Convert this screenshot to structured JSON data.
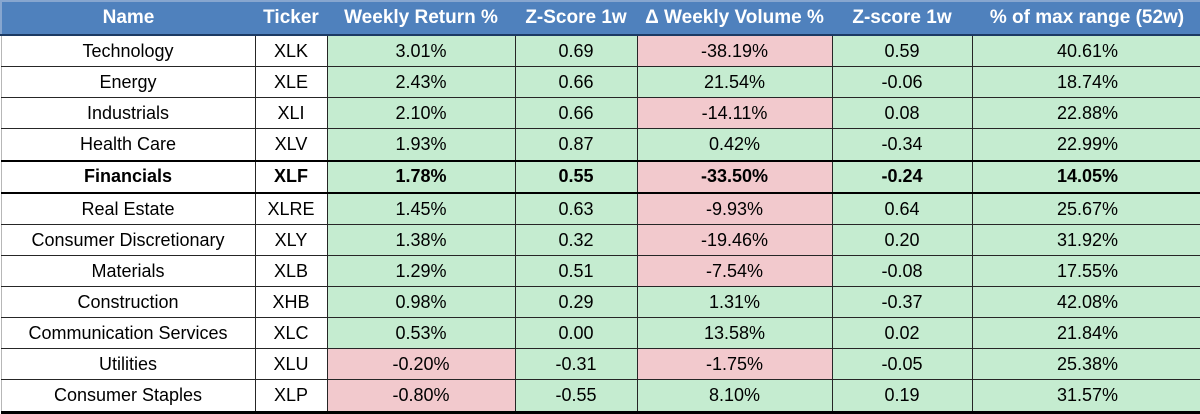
{
  "colors": {
    "header_bg": "#4f81bd",
    "header_text": "#ffffff",
    "header_border": "#1c3a63",
    "header_edge": "#87a6cf",
    "positive_bg": "#c5ecd0",
    "negative_bg": "#f2c9cd"
  },
  "chart_data": {
    "type": "table",
    "columns": [
      "Name",
      "Ticker",
      "Weekly Return %",
      "Z-Score 1w",
      "Δ Weekly Volume %",
      "Z-score 1w",
      "% of max range (52w)"
    ],
    "rows": [
      {
        "emphasis": false,
        "cells": [
          {
            "value": "Technology",
            "fill": "white"
          },
          {
            "value": "XLK",
            "fill": "white"
          },
          {
            "value": "3.01%",
            "fill": "green"
          },
          {
            "value": "0.69",
            "fill": "green"
          },
          {
            "value": "-38.19%",
            "fill": "red"
          },
          {
            "value": "0.59",
            "fill": "green"
          },
          {
            "value": "40.61%",
            "fill": "green"
          }
        ]
      },
      {
        "emphasis": false,
        "cells": [
          {
            "value": "Energy",
            "fill": "white"
          },
          {
            "value": "XLE",
            "fill": "white"
          },
          {
            "value": "2.43%",
            "fill": "green"
          },
          {
            "value": "0.66",
            "fill": "green"
          },
          {
            "value": "21.54%",
            "fill": "green"
          },
          {
            "value": "-0.06",
            "fill": "green"
          },
          {
            "value": "18.74%",
            "fill": "green"
          }
        ]
      },
      {
        "emphasis": false,
        "cells": [
          {
            "value": "Industrials",
            "fill": "white"
          },
          {
            "value": "XLI",
            "fill": "white"
          },
          {
            "value": "2.10%",
            "fill": "green"
          },
          {
            "value": "0.66",
            "fill": "green"
          },
          {
            "value": "-14.11%",
            "fill": "red"
          },
          {
            "value": "0.08",
            "fill": "green"
          },
          {
            "value": "22.88%",
            "fill": "green"
          }
        ]
      },
      {
        "emphasis": false,
        "cells": [
          {
            "value": "Health Care",
            "fill": "white"
          },
          {
            "value": "XLV",
            "fill": "white"
          },
          {
            "value": "1.93%",
            "fill": "green"
          },
          {
            "value": "0.87",
            "fill": "green"
          },
          {
            "value": "0.42%",
            "fill": "green"
          },
          {
            "value": "-0.34",
            "fill": "green"
          },
          {
            "value": "22.99%",
            "fill": "green"
          }
        ]
      },
      {
        "emphasis": true,
        "cells": [
          {
            "value": "Financials",
            "fill": "white"
          },
          {
            "value": "XLF",
            "fill": "white"
          },
          {
            "value": "1.78%",
            "fill": "green"
          },
          {
            "value": "0.55",
            "fill": "green"
          },
          {
            "value": "-33.50%",
            "fill": "red"
          },
          {
            "value": "-0.24",
            "fill": "green"
          },
          {
            "value": "14.05%",
            "fill": "green"
          }
        ]
      },
      {
        "emphasis": false,
        "cells": [
          {
            "value": "Real Estate",
            "fill": "white"
          },
          {
            "value": "XLRE",
            "fill": "white"
          },
          {
            "value": "1.45%",
            "fill": "green"
          },
          {
            "value": "0.63",
            "fill": "green"
          },
          {
            "value": "-9.93%",
            "fill": "red"
          },
          {
            "value": "0.64",
            "fill": "green"
          },
          {
            "value": "25.67%",
            "fill": "green"
          }
        ]
      },
      {
        "emphasis": false,
        "cells": [
          {
            "value": "Consumer Discretionary",
            "fill": "white"
          },
          {
            "value": "XLY",
            "fill": "white"
          },
          {
            "value": "1.38%",
            "fill": "green"
          },
          {
            "value": "0.32",
            "fill": "green"
          },
          {
            "value": "-19.46%",
            "fill": "red"
          },
          {
            "value": "0.20",
            "fill": "green"
          },
          {
            "value": "31.92%",
            "fill": "green"
          }
        ]
      },
      {
        "emphasis": false,
        "cells": [
          {
            "value": "Materials",
            "fill": "white"
          },
          {
            "value": "XLB",
            "fill": "white"
          },
          {
            "value": "1.29%",
            "fill": "green"
          },
          {
            "value": "0.51",
            "fill": "green"
          },
          {
            "value": "-7.54%",
            "fill": "red"
          },
          {
            "value": "-0.08",
            "fill": "green"
          },
          {
            "value": "17.55%",
            "fill": "green"
          }
        ]
      },
      {
        "emphasis": false,
        "cells": [
          {
            "value": "Construction",
            "fill": "white"
          },
          {
            "value": "XHB",
            "fill": "white"
          },
          {
            "value": "0.98%",
            "fill": "green"
          },
          {
            "value": "0.29",
            "fill": "green"
          },
          {
            "value": "1.31%",
            "fill": "green"
          },
          {
            "value": "-0.37",
            "fill": "green"
          },
          {
            "value": "42.08%",
            "fill": "green"
          }
        ]
      },
      {
        "emphasis": false,
        "cells": [
          {
            "value": "Communication Services",
            "fill": "white"
          },
          {
            "value": "XLC",
            "fill": "white"
          },
          {
            "value": "0.53%",
            "fill": "green"
          },
          {
            "value": "0.00",
            "fill": "green"
          },
          {
            "value": "13.58%",
            "fill": "green"
          },
          {
            "value": "0.02",
            "fill": "green"
          },
          {
            "value": "21.84%",
            "fill": "green"
          }
        ]
      },
      {
        "emphasis": false,
        "cells": [
          {
            "value": "Utilities",
            "fill": "white"
          },
          {
            "value": "XLU",
            "fill": "white"
          },
          {
            "value": "-0.20%",
            "fill": "red"
          },
          {
            "value": "-0.31",
            "fill": "green"
          },
          {
            "value": "-1.75%",
            "fill": "red"
          },
          {
            "value": "-0.05",
            "fill": "green"
          },
          {
            "value": "25.38%",
            "fill": "green"
          }
        ]
      },
      {
        "emphasis": false,
        "cells": [
          {
            "value": "Consumer Staples",
            "fill": "white"
          },
          {
            "value": "XLP",
            "fill": "white"
          },
          {
            "value": "-0.80%",
            "fill": "red"
          },
          {
            "value": "-0.55",
            "fill": "green"
          },
          {
            "value": "8.10%",
            "fill": "green"
          },
          {
            "value": "0.19",
            "fill": "green"
          },
          {
            "value": "31.57%",
            "fill": "green"
          }
        ]
      }
    ]
  }
}
